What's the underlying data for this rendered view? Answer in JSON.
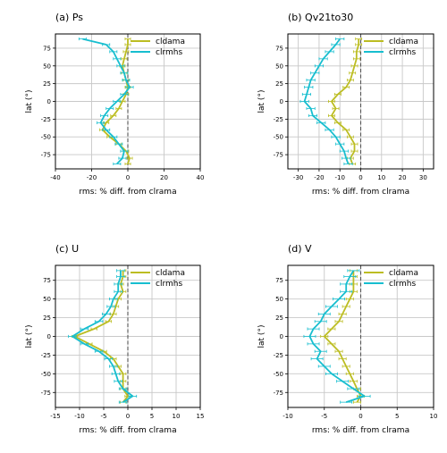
{
  "chart_data": [
    {
      "type": "line",
      "title": "(a) Ps",
      "xlabel": "rms: % diff. from clrama",
      "ylabel": "lat (°)",
      "xlim": [
        -40,
        40
      ],
      "ylim": [
        -95,
        95
      ],
      "xticks": [
        "-40",
        "-20",
        "0",
        "20",
        "40"
      ],
      "yticks": [
        "75",
        "50",
        "25",
        "0",
        "-25",
        "-50",
        "-75"
      ],
      "grid": true,
      "legend_position": "top-right",
      "reference_line_x": 0,
      "series": [
        {
          "name": "cldama",
          "color": "#bcbd22",
          "y": [
            88,
            80,
            70,
            60,
            50,
            40,
            30,
            20,
            10,
            0,
            -10,
            -20,
            -30,
            -40,
            -50,
            -60,
            -70,
            -80,
            -88
          ],
          "x": [
            0,
            0,
            -1,
            -2,
            -3,
            -2,
            -1,
            0,
            -1,
            -3,
            -5,
            -8,
            -12,
            -14,
            -10,
            -5,
            -1,
            1,
            0
          ],
          "xerr": 1.5
        },
        {
          "name": "clrmhs",
          "color": "#17becf",
          "y": [
            88,
            80,
            70,
            60,
            50,
            40,
            30,
            20,
            10,
            0,
            -10,
            -20,
            -30,
            -40,
            -50,
            -60,
            -70,
            -80,
            -88
          ],
          "x": [
            -25,
            -12,
            -8,
            -6,
            -4,
            -2,
            -1,
            1,
            -2,
            -6,
            -10,
            -13,
            -15,
            -12,
            -8,
            -5,
            -2,
            -3,
            -6
          ],
          "xerr": 2
        }
      ]
    },
    {
      "type": "line",
      "title": "(b) Qv21to30",
      "xlabel": "rms: % diff. from clrama",
      "ylabel": "lat (°)",
      "xlim": [
        -35,
        35
      ],
      "ylim": [
        -95,
        95
      ],
      "xticks": [
        "-30",
        "-20",
        "-10",
        "0",
        "10",
        "20",
        "30"
      ],
      "yticks": [
        "75",
        "50",
        "25",
        "0",
        "-25",
        "-50",
        "-75"
      ],
      "grid": true,
      "legend_position": "top-right",
      "reference_line_x": 0,
      "series": [
        {
          "name": "cldama",
          "color": "#bcbd22",
          "y": [
            88,
            80,
            70,
            60,
            50,
            40,
            30,
            20,
            10,
            0,
            -10,
            -20,
            -30,
            -40,
            -50,
            -60,
            -70,
            -80,
            -88
          ],
          "x": [
            -1,
            -1,
            -2,
            -2,
            -3,
            -4,
            -5,
            -7,
            -11,
            -14,
            -12,
            -14,
            -11,
            -7,
            -5,
            -3,
            -3,
            -5,
            -4
          ],
          "xerr": 1.5
        },
        {
          "name": "clrmhs",
          "color": "#17becf",
          "y": [
            88,
            80,
            70,
            60,
            50,
            40,
            30,
            20,
            10,
            0,
            -10,
            -20,
            -30,
            -40,
            -50,
            -60,
            -70,
            -80,
            -88
          ],
          "x": [
            -10,
            -12,
            -15,
            -18,
            -20,
            -22,
            -24,
            -25,
            -26,
            -27,
            -24,
            -23,
            -19,
            -15,
            -12,
            -10,
            -8,
            -7,
            -6
          ],
          "xerr": 2
        }
      ]
    },
    {
      "type": "line",
      "title": "(c) U",
      "xlabel": "rms: % diff. from clrama",
      "ylabel": "lat (°)",
      "xlim": [
        -15,
        15
      ],
      "ylim": [
        -95,
        95
      ],
      "xticks": [
        "-15",
        "-10",
        "-5",
        "0",
        "5",
        "10",
        "15"
      ],
      "yticks": [
        "75",
        "50",
        "25",
        "0",
        "-25",
        "-50",
        "-75"
      ],
      "grid": true,
      "legend_position": "top-right",
      "reference_line_x": 0,
      "series": [
        {
          "name": "cldama",
          "color": "#bcbd22",
          "y": [
            88,
            80,
            70,
            60,
            50,
            40,
            30,
            20,
            10,
            0,
            -10,
            -20,
            -30,
            -40,
            -50,
            -60,
            -70,
            -80,
            -88
          ],
          "x": [
            -1,
            -1,
            -1.5,
            -1,
            -2,
            -2.5,
            -3,
            -4,
            -7,
            -11,
            -8,
            -5,
            -3,
            -2,
            -1,
            -1,
            -1,
            0,
            -1
          ],
          "xerr": 0.6
        },
        {
          "name": "clrmhs",
          "color": "#17becf",
          "y": [
            88,
            80,
            70,
            60,
            50,
            40,
            30,
            20,
            10,
            0,
            -10,
            -20,
            -30,
            -40,
            -50,
            -60,
            -70,
            -80,
            -88
          ],
          "x": [
            -1.5,
            -1.5,
            -2,
            -2,
            -3,
            -3.5,
            -4.5,
            -6,
            -9,
            -11.5,
            -9,
            -6,
            -4,
            -3,
            -2.5,
            -2,
            -1,
            1,
            -1
          ],
          "xerr": 0.8
        }
      ]
    },
    {
      "type": "line",
      "title": "(d) V",
      "xlabel": "rms: % diff. from clrama",
      "ylabel": "lat (°)",
      "xlim": [
        -10,
        10
      ],
      "ylim": [
        -95,
        95
      ],
      "xticks": [
        "-10",
        "-5",
        "0",
        "5",
        "10"
      ],
      "yticks": [
        "75",
        "50",
        "25",
        "0",
        "-25",
        "-50",
        "-75"
      ],
      "grid": true,
      "legend_position": "top-right",
      "reference_line_x": 0,
      "series": [
        {
          "name": "cldama",
          "color": "#bcbd22",
          "y": [
            88,
            80,
            70,
            60,
            50,
            40,
            30,
            20,
            10,
            0,
            -10,
            -20,
            -30,
            -40,
            -50,
            -60,
            -70,
            -80,
            -88
          ],
          "x": [
            -1,
            -1,
            -1,
            -1,
            -1.5,
            -2,
            -2.5,
            -3,
            -4,
            -5,
            -4,
            -3,
            -2.5,
            -2,
            -1.5,
            -1,
            -0.5,
            0,
            -0.5
          ],
          "xerr": 0.5
        },
        {
          "name": "clrmhs",
          "color": "#17becf",
          "y": [
            88,
            80,
            70,
            60,
            50,
            40,
            30,
            20,
            10,
            0,
            -10,
            -20,
            -30,
            -40,
            -50,
            -60,
            -70,
            -80,
            -88
          ],
          "x": [
            -1,
            -1.5,
            -2,
            -2,
            -3,
            -4,
            -5,
            -5.5,
            -6.5,
            -7,
            -6.5,
            -5.5,
            -6,
            -5,
            -4,
            -2.5,
            -1,
            0.5,
            -2
          ],
          "xerr": 0.8
        }
      ]
    }
  ]
}
